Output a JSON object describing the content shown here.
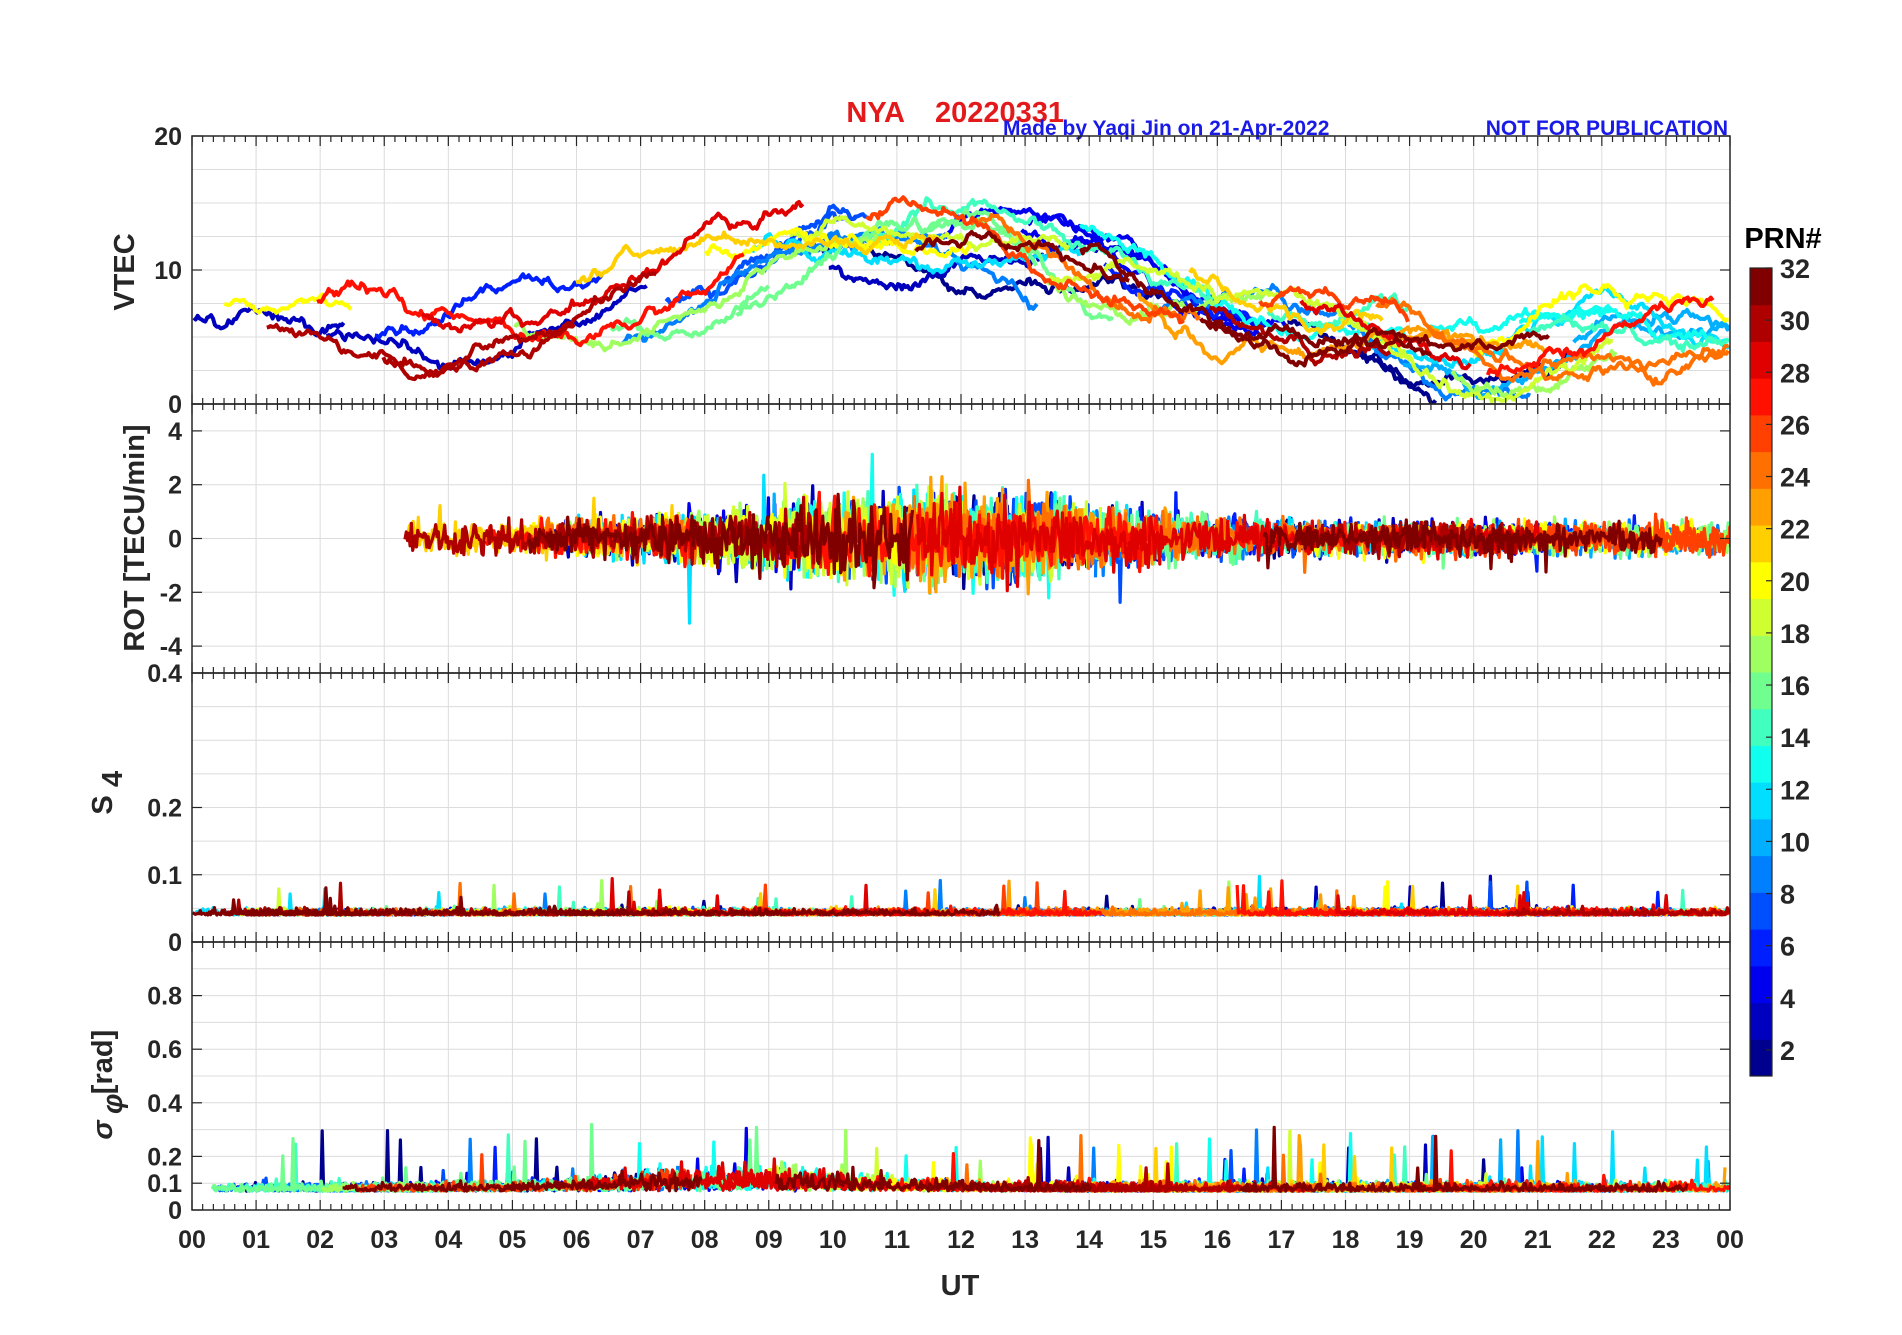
{
  "title": {
    "station": "NYA",
    "date": "20220331"
  },
  "credit": "Made by Yaqi Jin on 21-Apr-2022",
  "notice": "NOT FOR PUBLICATION",
  "colorbar": {
    "label": "PRN#",
    "ticks": [
      "2",
      "4",
      "6",
      "8",
      "10",
      "12",
      "14",
      "16",
      "18",
      "20",
      "22",
      "24",
      "26",
      "28",
      "30",
      "32"
    ],
    "range": [
      1,
      32
    ],
    "colors": [
      "#00008f",
      "#0000bf",
      "#0000ef",
      "#001fff",
      "#004fff",
      "#007fff",
      "#00afff",
      "#00dfff",
      "#10ffef",
      "#40ffbf",
      "#70ff8f",
      "#9fff60",
      "#cfff30",
      "#ffff00",
      "#ffcf00",
      "#ff9f00",
      "#ff7000",
      "#ff4000",
      "#ff1000",
      "#df0000",
      "#af0000",
      "#800000"
    ]
  },
  "chart_data": [
    {
      "type": "line",
      "panel": "vtec",
      "ylabel": "VTEC",
      "ylim": [
        0,
        20
      ],
      "yticks": [
        "20",
        "10",
        "0"
      ],
      "description": "Vertical TEC per satellite PRN vs universal time"
    },
    {
      "type": "line",
      "panel": "rot",
      "ylabel": "ROT [TECU/min]",
      "ylim": [
        -5,
        5
      ],
      "yticks": [
        "4",
        "2",
        "0",
        "-2",
        "-4"
      ],
      "description": "Rate of TEC change per satellite PRN"
    },
    {
      "type": "line",
      "panel": "s4",
      "ylabel": "S",
      "ylabel_sub": "4",
      "ylim": [
        0,
        0.4
      ],
      "yticks": [
        "0.4",
        "0.2",
        "0.1",
        "0"
      ],
      "description": "Amplitude scintillation index S4 per satellite PRN"
    },
    {
      "type": "line",
      "panel": "sigphi",
      "ylabel_symbol": "σ",
      "ylabel_sub": "φ",
      "ylabel_unit": "[rad]",
      "ylim": [
        0,
        1
      ],
      "yticks": [
        "0.8",
        "0.6",
        "0.4",
        "0.2",
        "0.1",
        "0"
      ],
      "description": "Phase scintillation index sigma-phi per satellite PRN"
    }
  ],
  "xaxis": {
    "label": "UT",
    "range_hours": [
      0,
      24
    ],
    "ticks": [
      "00",
      "01",
      "02",
      "03",
      "04",
      "05",
      "06",
      "07",
      "08",
      "09",
      "10",
      "11",
      "12",
      "13",
      "14",
      "15",
      "16",
      "17",
      "18",
      "19",
      "20",
      "21",
      "22",
      "23",
      "00"
    ]
  }
}
